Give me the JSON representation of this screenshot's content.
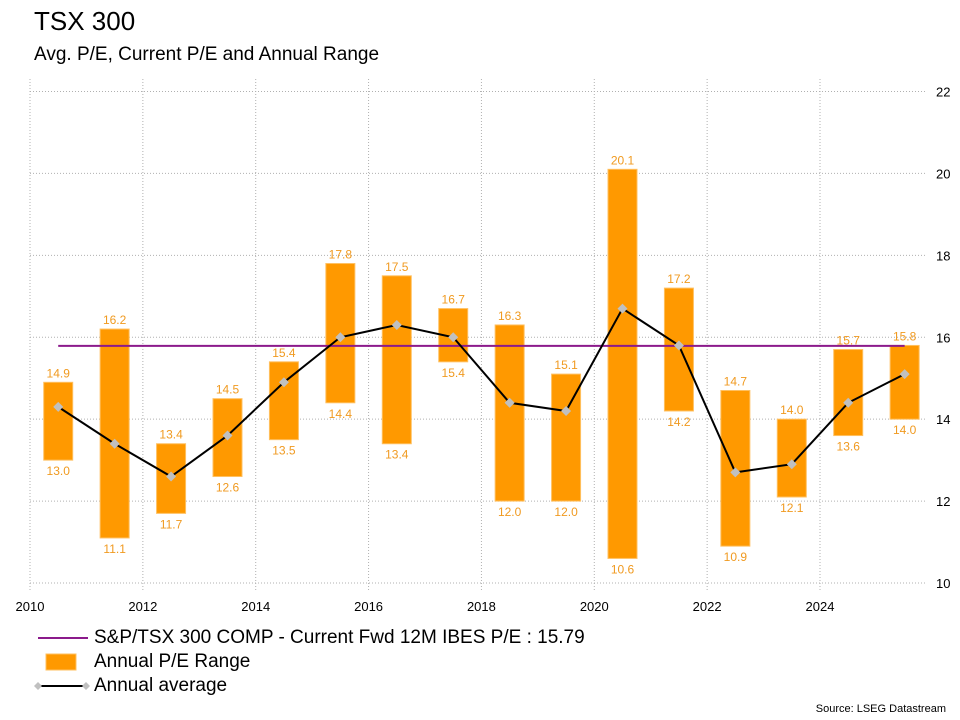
{
  "header": {
    "title": "TSX 300",
    "subtitle": "Avg. P/E, Current P/E and Annual Range"
  },
  "legend": {
    "items": [
      {
        "label": "S&P/TSX 300 COMP - Current Fwd 12M IBES P/E : 15.79",
        "symbol": "line",
        "color": "#8b1a8b"
      },
      {
        "label": "Annual P/E Range",
        "symbol": "box",
        "color": "#ff9900"
      },
      {
        "label": "Annual average",
        "symbol": "line-diamond",
        "color": "#000000",
        "marker_color": "#c0c0c0"
      }
    ]
  },
  "source": "Source: LSEG Datastream",
  "colors": {
    "range_bar": "#ff9900",
    "range_bar_edge": "#ffc060",
    "range_label": "#f09a20",
    "current_pe_line": "#8b1a8b",
    "average_line": "#000000",
    "average_marker": "#c0c0c0",
    "grid": "#b0b0b0"
  },
  "chart_data": {
    "type": "bar",
    "title": "TSX 300",
    "subtitle": "Avg. P/E, Current P/E and Annual Range",
    "xlabel": "",
    "ylabel": "",
    "xlim": [
      2010,
      2026
    ],
    "ylim": [
      10,
      22
    ],
    "x_ticks": [
      "2010",
      "2012",
      "2014",
      "2016",
      "2018",
      "2020",
      "2022",
      "2024"
    ],
    "y_ticks": [
      "10",
      "12",
      "14",
      "16",
      "18",
      "20",
      "22"
    ],
    "y_axis_side": "right",
    "grid": true,
    "legend_position": "bottom-left",
    "categories": [
      "2010",
      "2011",
      "2012",
      "2013",
      "2014",
      "2015",
      "2016",
      "2017",
      "2018",
      "2019",
      "2020",
      "2021",
      "2022",
      "2023",
      "2024",
      "2025"
    ],
    "series": [
      {
        "name": "Annual P/E Range",
        "type": "range-bar",
        "high": [
          14.9,
          16.2,
          13.4,
          14.5,
          15.4,
          17.8,
          17.5,
          16.7,
          16.3,
          15.1,
          20.1,
          17.2,
          14.7,
          14.0,
          15.7,
          15.8
        ],
        "low": [
          13.0,
          11.1,
          11.7,
          12.6,
          13.5,
          14.4,
          13.4,
          15.4,
          12.0,
          12.0,
          10.6,
          14.2,
          10.9,
          12.1,
          13.6,
          14.0
        ],
        "high_labels": [
          "14.9",
          "16.2",
          "13.4",
          "14.5",
          "15.4",
          "17.8",
          "17.5",
          "16.7",
          "16.3",
          "15.1",
          "20.1",
          "17.2",
          "14.7",
          "14.0",
          "15.7",
          "15.8"
        ],
        "low_labels": [
          "13.0",
          "11.1",
          "11.7",
          "12.6",
          "13.5",
          "14.4",
          "13.4",
          "15.4",
          "12.0",
          "12.0",
          "10.6",
          "14.2",
          "10.9",
          "12.1",
          "13.6",
          "14.0"
        ]
      },
      {
        "name": "Annual average",
        "type": "line",
        "values": [
          14.3,
          13.4,
          12.6,
          13.6,
          14.9,
          16.0,
          16.3,
          16.0,
          14.4,
          14.2,
          16.7,
          15.8,
          12.7,
          12.9,
          14.4,
          15.1
        ]
      },
      {
        "name": "S&P/TSX 300 COMP - Current Fwd 12M IBES P/E",
        "type": "hline",
        "value": 15.79
      }
    ]
  }
}
